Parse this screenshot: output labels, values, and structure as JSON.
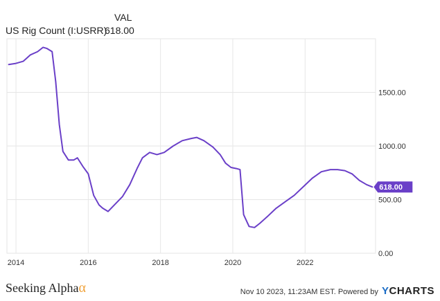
{
  "legend": {
    "column_header": "VAL",
    "series_name": "US Rig Count (I:USRR)",
    "series_value": "618.00"
  },
  "footer": {
    "brand": "Seeking Alpha",
    "brand_symbol": "α",
    "timestamp": "Nov 10 2023, 11:23AM EST.",
    "powered_by": "Powered by",
    "provider_mark": "Y",
    "provider_rest": "CHARTS"
  },
  "colors": {
    "line": "#6a3fc8",
    "grid": "#e6e6e6",
    "brand_alpha": "#f0a23a",
    "ycharts_y": "#1a6cc6"
  },
  "chart_data": {
    "type": "line",
    "title": "",
    "xlabel": "",
    "ylabel": "",
    "xlim": [
      2013.75,
      2023.95
    ],
    "ylim": [
      0,
      2000
    ],
    "x_ticks": [
      2014,
      2016,
      2018,
      2020,
      2022
    ],
    "x_tick_labels": [
      "2014",
      "2016",
      "2018",
      "2020",
      "2022"
    ],
    "y_ticks": [
      0,
      500,
      1000,
      1500
    ],
    "y_tick_labels": [
      "0.00",
      "500.00",
      "1000.00",
      "1500.00"
    ],
    "grid": true,
    "last_value_label": "618.00",
    "series": [
      {
        "name": "US Rig Count (I:USRR)",
        "x": [
          2013.8,
          2014.0,
          2014.2,
          2014.4,
          2014.6,
          2014.75,
          2014.85,
          2015.0,
          2015.1,
          2015.2,
          2015.3,
          2015.45,
          2015.6,
          2015.7,
          2015.85,
          2016.0,
          2016.15,
          2016.3,
          2016.4,
          2016.55,
          2016.75,
          2016.95,
          2017.15,
          2017.35,
          2017.5,
          2017.7,
          2017.9,
          2018.1,
          2018.35,
          2018.6,
          2018.85,
          2019.0,
          2019.2,
          2019.45,
          2019.65,
          2019.8,
          2019.95,
          2020.1,
          2020.2,
          2020.3,
          2020.45,
          2020.6,
          2020.75,
          2020.95,
          2021.2,
          2021.45,
          2021.7,
          2021.95,
          2022.2,
          2022.45,
          2022.7,
          2022.9,
          2023.1,
          2023.3,
          2023.5,
          2023.7,
          2023.86
        ],
        "y": [
          1760,
          1770,
          1790,
          1850,
          1880,
          1920,
          1910,
          1880,
          1600,
          1200,
          950,
          870,
          870,
          890,
          810,
          740,
          540,
          450,
          420,
          390,
          460,
          530,
          640,
          790,
          890,
          940,
          920,
          940,
          1000,
          1050,
          1070,
          1080,
          1050,
          990,
          920,
          840,
          800,
          790,
          780,
          360,
          250,
          240,
          280,
          340,
          420,
          480,
          540,
          620,
          700,
          760,
          780,
          780,
          770,
          740,
          680,
          640,
          618
        ]
      }
    ]
  }
}
